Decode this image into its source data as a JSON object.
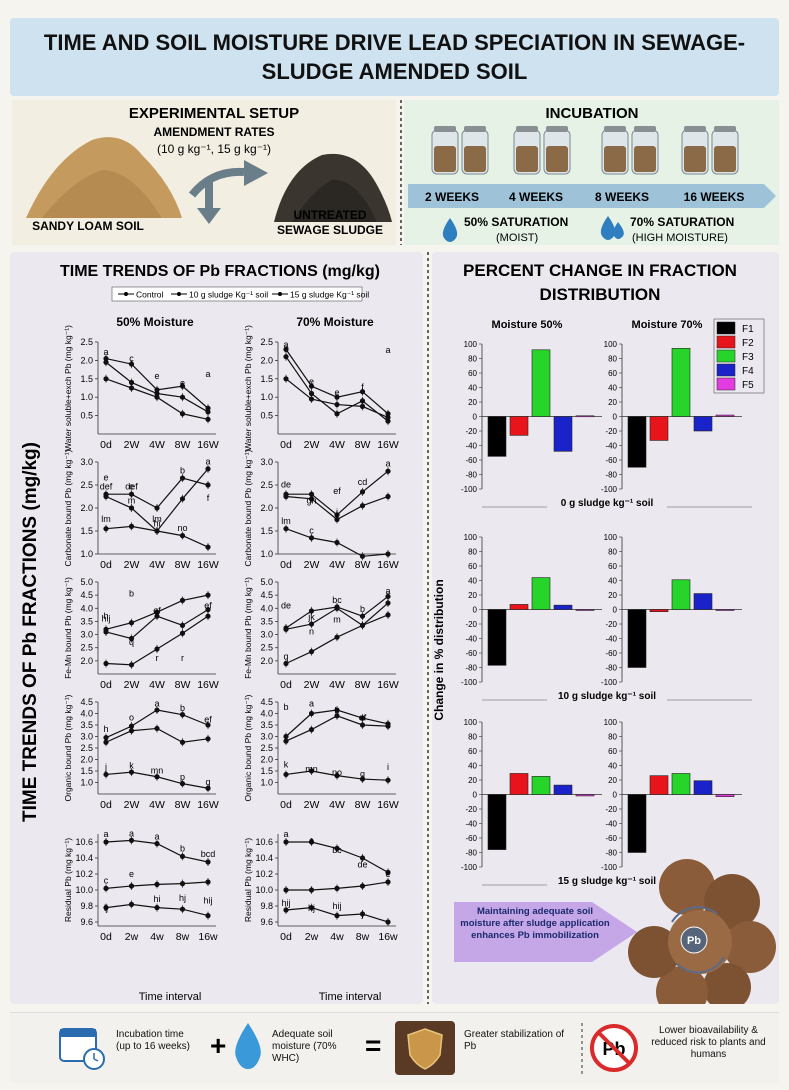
{
  "header": {
    "title": "TIME AND SOIL MOISTURE DRIVE LEAD SPECIATION IN SEWAGE-\nSLUDGE AMENDED SOIL"
  },
  "setup": {
    "heading": "EXPERIMENTAL SETUP",
    "rates_heading": "AMENDMENT RATES",
    "rates": "(10 g kg⁻¹, 15 g kg⁻¹)",
    "soil_label": "SANDY LOAM SOIL",
    "sludge_label_1": "UNTREATED",
    "sludge_label_2": "SEWAGE SLUDGE"
  },
  "incubation": {
    "heading": "INCUBATION",
    "weeks": [
      "2 WEEKS",
      "4 WEEKS",
      "8 WEEKS",
      "16 WEEKS"
    ],
    "sat50": "50% SATURATION",
    "sat50_sub": "(MOIST)",
    "sat70": "70% SATURATION",
    "sat70_sub": "(HIGH MOISTURE)"
  },
  "left": {
    "title": "TIME TRENDS OF Pb FRACTIONS (mg/kg)",
    "side_title": "TIME TRENDS OF Pb FRACTIONS (mg/kg)",
    "legend": [
      "Control",
      "10 g sludge Kg⁻¹ soil",
      "15 g sludge Kg⁻¹ soil"
    ],
    "col_titles": [
      "50% Moisture",
      "70% Moisture"
    ],
    "x_title": "Time interval"
  },
  "right": {
    "title_1": "PERCENT CHANGE IN FRACTION",
    "title_2": "DISTRIBUTION",
    "col_titles": [
      "Moisture 50%",
      "Moisture 70%"
    ],
    "y_title": "Change in % distribution",
    "legend": [
      "F1",
      "F2",
      "F3",
      "F4",
      "F5"
    ],
    "row_labels": [
      "0 g sludge kg⁻¹ soil",
      "10 g sludge kg⁻¹ soil",
      "15 g sludge kg⁻¹ soil"
    ],
    "callout": "Maintaining adequate soil moisture after sludge application enhances Pb immobilization",
    "pb_label": "Pb"
  },
  "bottom": {
    "item1": "Incubation time (up to 16 weeks)",
    "plus": "+",
    "item2": "Adequate soil moisture (70% WHC)",
    "equals": "=",
    "item3": "Greater stabilization of Pb",
    "item4": "Lower bioavailability & reduced risk to plants and humans",
    "pb_symbol": "Pb"
  },
  "colors": {
    "F1": "#000000",
    "F2": "#e8141b",
    "F3": "#27d42a",
    "F4": "#1a23c9",
    "F5": "#e23be0"
  },
  "chart_data": [
    {
      "type": "line",
      "x": [
        "0d",
        "2W",
        "4W",
        "8W",
        "16W"
      ],
      "ylim": [
        0,
        2.5
      ],
      "yticks": [
        0.5,
        1.0,
        1.5,
        2.0,
        2.5
      ],
      "ylabel": "Water soluble+exch Pb (mg kg⁻¹)",
      "panels": [
        {
          "moisture": "50% Moisture",
          "series": [
            {
              "values": [
                1.5,
                1.25,
                1.0,
                0.55,
                0.4
              ]
            },
            {
              "values": [
                1.95,
                1.4,
                1.1,
                1.0,
                0.6
              ]
            },
            {
              "values": [
                2.05,
                1.9,
                1.2,
                1.3,
                0.7
              ]
            }
          ],
          "letters": [
            [
              "a",
              2.15
            ],
            [
              "c",
              1.97
            ],
            [
              "e",
              1.5
            ],
            [
              "e",
              1.3
            ],
            [
              "a",
              1.55
            ]
          ]
        },
        {
          "moisture": "70% Moisture",
          "series": [
            {
              "values": [
                1.5,
                0.95,
                0.8,
                0.75,
                0.45
              ]
            },
            {
              "values": [
                2.1,
                1.1,
                0.55,
                0.9,
                0.35
              ]
            },
            {
              "values": [
                2.3,
                1.3,
                1.0,
                1.15,
                0.55
              ]
            }
          ],
          "letters": [
            [
              "a",
              2.35
            ],
            [
              "e",
              1.35
            ],
            [
              "e",
              1.05
            ],
            [
              "f",
              1.2
            ],
            [
              "a",
              2.2
            ]
          ]
        }
      ]
    },
    {
      "type": "line",
      "x": [
        "0d",
        "2W",
        "4W",
        "8W",
        "16W"
      ],
      "ylim": [
        1.0,
        3.0
      ],
      "yticks": [
        1.0,
        1.5,
        2.0,
        2.5,
        3.0
      ],
      "ylabel": "Carbonate bound Pb (mg kg⁻¹)",
      "panels": [
        {
          "moisture": "50% Moisture",
          "series": [
            {
              "values": [
                1.55,
                1.6,
                1.5,
                1.4,
                1.15
              ]
            },
            {
              "values": [
                2.25,
                2.0,
                1.5,
                2.2,
                2.85
              ]
            },
            {
              "values": [
                2.3,
                2.3,
                2.0,
                2.65,
                2.5
              ]
            }
          ],
          "letters": [
            [
              "def",
              2.4
            ],
            [
              "def",
              2.4
            ],
            [
              "lm",
              1.7
            ],
            [
              "b",
              2.75
            ],
            [
              "a",
              2.95
            ],
            [
              "lm",
              1.7
            ],
            [
              "m",
              2.1
            ],
            [
              "hi",
              1.6
            ],
            [
              "no",
              1.5
            ],
            [
              "f",
              2.15
            ],
            [
              "e",
              2.6
            ],
            [
              "e",
              2.4
            ]
          ]
        },
        {
          "moisture": "70% Moisture",
          "series": [
            {
              "values": [
                1.55,
                1.35,
                1.25,
                0.95,
                1.0
              ]
            },
            {
              "values": [
                2.25,
                2.2,
                1.75,
                2.05,
                2.25
              ]
            },
            {
              "values": [
                2.3,
                2.3,
                1.85,
                2.35,
                2.8
              ]
            }
          ],
          "letters": [
            [
              "de",
              2.45
            ],
            [
              "gh",
              2.1
            ],
            [
              "j",
              1.85
            ],
            [
              "cd",
              2.5
            ],
            [
              "a",
              2.9
            ],
            [
              "lm",
              1.65
            ],
            [
              "c",
              1.45
            ],
            [
              "ef",
              2.3
            ]
          ]
        }
      ]
    },
    {
      "type": "line",
      "x": [
        "0d",
        "2W",
        "4W",
        "8W",
        "16W"
      ],
      "ylim": [
        1.5,
        5.0
      ],
      "yticks": [
        2.0,
        2.5,
        3.0,
        3.5,
        4.0,
        4.5,
        5.0
      ],
      "ylabel": "Fe-Mn bound Pb (mg kg⁻¹)",
      "panels": [
        {
          "moisture": "50% Moisture",
          "series": [
            {
              "values": [
                1.9,
                1.85,
                2.45,
                3.05,
                3.7
              ]
            },
            {
              "values": [
                3.1,
                2.85,
                3.7,
                3.35,
                3.95
              ]
            },
            {
              "values": [
                3.2,
                3.45,
                3.85,
                4.3,
                4.5
              ]
            }
          ],
          "letters": [
            [
              "h",
              3.6
            ],
            [
              "b",
              4.45
            ],
            [
              "r",
              2.0
            ],
            [
              "r",
              2.0
            ],
            [
              "ef",
              4.0
            ],
            [
              "hij",
              3.5
            ],
            [
              "q",
              2.6
            ],
            [
              "ef",
              3.8
            ]
          ]
        },
        {
          "moisture": "70% Moisture",
          "series": [
            {
              "values": [
                1.9,
                2.35,
                2.9,
                3.35,
                3.75
              ]
            },
            {
              "values": [
                3.2,
                3.4,
                4.0,
                3.35,
                4.2
              ]
            },
            {
              "values": [
                3.25,
                3.9,
                4.05,
                3.7,
                4.45
              ]
            }
          ],
          "letters": [
            [
              "de",
              4.0
            ],
            [
              "jk",
              3.55
            ],
            [
              "bc",
              4.2
            ],
            [
              "b",
              3.85
            ],
            [
              "a",
              4.55
            ],
            [
              "q",
              2.05
            ],
            [
              "n",
              3.0
            ],
            [
              "m",
              3.45
            ]
          ]
        }
      ]
    },
    {
      "type": "line",
      "x": [
        "0d",
        "2W",
        "4W",
        "8W",
        "16W"
      ],
      "ylim": [
        0.5,
        4.5
      ],
      "yticks": [
        1.0,
        1.5,
        2.0,
        2.5,
        3.0,
        3.5,
        4.0,
        4.5
      ],
      "ylabel": "Organic bound Pb (mg kg⁻¹)",
      "panels": [
        {
          "moisture": "50% Moisture",
          "series": [
            {
              "values": [
                1.35,
                1.45,
                1.25,
                0.95,
                0.75
              ]
            },
            {
              "values": [
                2.75,
                3.25,
                3.35,
                2.75,
                2.9
              ]
            },
            {
              "values": [
                2.95,
                3.45,
                4.15,
                3.95,
                3.5
              ]
            }
          ],
          "letters": [
            [
              "h",
              3.2
            ],
            [
              "o",
              3.7
            ],
            [
              "a",
              4.3
            ],
            [
              "b",
              4.1
            ],
            [
              "ef",
              3.6
            ],
            [
              "j",
              1.55
            ],
            [
              "k",
              1.6
            ],
            [
              "mn",
              1.4
            ],
            [
              "p",
              1.1
            ],
            [
              "q",
              0.9
            ]
          ]
        },
        {
          "moisture": "70% Moisture",
          "series": [
            {
              "values": [
                1.35,
                1.5,
                1.3,
                1.15,
                1.1
              ]
            },
            {
              "values": [
                2.8,
                3.3,
                3.9,
                3.5,
                3.45
              ]
            },
            {
              "values": [
                3.0,
                4.0,
                4.15,
                3.8,
                3.55
              ]
            }
          ],
          "letters": [
            [
              "b",
              4.15
            ],
            [
              "a",
              4.3
            ],
            [
              "b",
              4.0
            ],
            [
              "ef",
              3.7
            ],
            [
              "i",
              1.55
            ],
            [
              "k",
              1.65
            ],
            [
              "mn",
              1.45
            ],
            [
              "no",
              1.3
            ],
            [
              "q",
              1.25
            ]
          ]
        }
      ]
    },
    {
      "type": "line",
      "x": [
        "0d",
        "2w",
        "4w",
        "8w",
        "16w"
      ],
      "ylim": [
        9.55,
        10.7
      ],
      "yticks": [
        9.6,
        9.8,
        10.0,
        10.2,
        10.4,
        10.6
      ],
      "ylabel": "Residual Pb (mg kg⁻¹)",
      "panels": [
        {
          "moisture": "50% Moisture",
          "series": [
            {
              "values": [
                10.6,
                10.62,
                10.58,
                10.42,
                10.35
              ]
            },
            {
              "values": [
                10.02,
                10.05,
                10.07,
                10.08,
                10.1
              ]
            },
            {
              "values": [
                9.78,
                9.82,
                9.78,
                9.76,
                9.68
              ]
            }
          ],
          "letters": [
            [
              "a",
              10.66
            ],
            [
              "a",
              10.67
            ],
            [
              "a",
              10.63
            ],
            [
              "b",
              10.48
            ],
            [
              "bcd",
              10.41
            ],
            [
              "c",
              10.08
            ],
            [
              "e",
              10.16
            ],
            [
              "hi",
              9.85
            ],
            [
              "hj",
              9.86
            ],
            [
              "hij",
              9.83
            ],
            [
              "ij",
              9.74
            ]
          ]
        },
        {
          "moisture": "70% Moisture",
          "series": [
            {
              "values": [
                10.6,
                10.6,
                10.52,
                10.4,
                10.22
              ]
            },
            {
              "values": [
                10.0,
                10.0,
                10.02,
                10.05,
                10.1
              ]
            },
            {
              "values": [
                9.75,
                9.78,
                9.68,
                9.7,
                9.6
              ]
            }
          ],
          "letters": [
            [
              "a",
              10.66
            ],
            [
              "a",
              10.58
            ],
            [
              "bc",
              10.46
            ],
            [
              "de",
              10.28
            ],
            [
              "e",
              10.16
            ],
            [
              "hij",
              9.8
            ],
            [
              "hj",
              9.74
            ],
            [
              "hij",
              9.76
            ],
            [
              "j",
              9.66
            ]
          ]
        }
      ]
    },
    {
      "type": "bar",
      "title": "PERCENT CHANGE IN FRACTION DISTRIBUTION",
      "categories": [
        "F1",
        "F2",
        "F3",
        "F4",
        "F5"
      ],
      "ylim": [
        -100,
        100
      ],
      "yticks": [
        100,
        80,
        60,
        40,
        20,
        0,
        -20,
        -40,
        -60,
        -80,
        -100
      ],
      "panels": [
        {
          "row": "0 g sludge kg⁻¹ soil",
          "moisture": "Moisture 50%",
          "values": [
            -55,
            -26,
            92,
            -48,
            1
          ]
        },
        {
          "row": "0 g sludge kg⁻¹ soil",
          "moisture": "Moisture 70%",
          "values": [
            -70,
            -33,
            94,
            -20,
            2
          ]
        },
        {
          "row": "10 g sludge kg⁻¹ soil",
          "moisture": "Moisture 50%",
          "values": [
            -77,
            7,
            44,
            6,
            -1
          ]
        },
        {
          "row": "10 g sludge kg⁻¹ soil",
          "moisture": "Moisture 70%",
          "values": [
            -80,
            -3,
            41,
            22,
            -1
          ]
        },
        {
          "row": "15 g sludge kg⁻¹ soil",
          "moisture": "Moisture 50%",
          "values": [
            -76,
            29,
            25,
            13,
            -2
          ]
        },
        {
          "row": "15 g sludge kg⁻¹ soil",
          "moisture": "Moisture 70%",
          "values": [
            -80,
            26,
            29,
            19,
            -3
          ]
        }
      ]
    }
  ]
}
